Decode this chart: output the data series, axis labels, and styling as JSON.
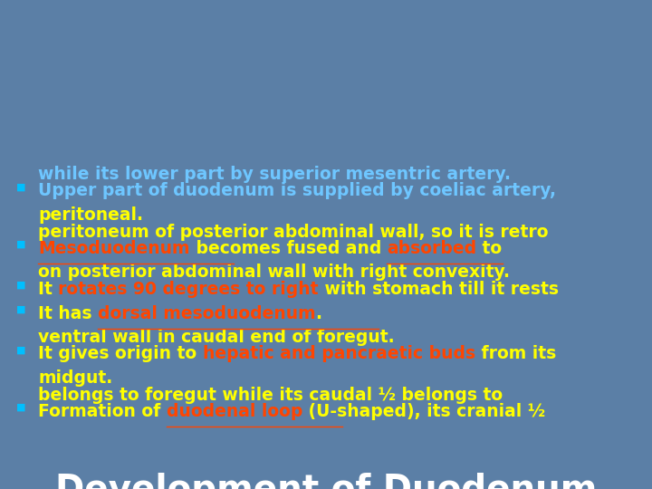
{
  "title": "Development of Duodenum",
  "title_color": "#FFFFFF",
  "title_fontsize": 28,
  "bg_color": "#5b7fa6",
  "bullet_color": "#00BFFF",
  "bullet_char": "■",
  "underline_color": "#3366aa",
  "bullet_points": [
    {
      "segments": [
        {
          "text": "Formation of ",
          "color": "#FFFF00",
          "bold": true
        },
        {
          "text": "duodenal loop",
          "color": "#FF4500",
          "bold": true,
          "underline": true
        },
        {
          "text": " (U-shaped), its cranial ½\nbelongs to foregut while its caudal ½ belongs to\nmidgut.",
          "color": "#FFFF00",
          "bold": true
        }
      ]
    },
    {
      "segments": [
        {
          "text": "It gives origin to ",
          "color": "#FFFF00",
          "bold": true
        },
        {
          "text": "hepatic and pancraetic buds",
          "color": "#FF4500",
          "bold": true
        },
        {
          "text": " from its\nventral wall in caudal end of foregut.",
          "color": "#FFFF00",
          "bold": true
        }
      ]
    },
    {
      "segments": [
        {
          "text": "It has ",
          "color": "#FFFF00",
          "bold": true
        },
        {
          "text": "dorsal mesoduodenum",
          "color": "#FF4500",
          "bold": true,
          "underline": true
        },
        {
          "text": ".",
          "color": "#FFFF00",
          "bold": true
        }
      ]
    },
    {
      "segments": [
        {
          "text": "It ",
          "color": "#FFFF00",
          "bold": true
        },
        {
          "text": "rotates 90 degrees to right",
          "color": "#FF4500",
          "bold": true
        },
        {
          "text": " with stomach till it rests\non posterior abdominal wall with right convexity.",
          "color": "#FFFF00",
          "bold": true
        }
      ]
    },
    {
      "segments": [
        {
          "text": "Mesoduodenum",
          "color": "#FF4500",
          "bold": true,
          "underline": true
        },
        {
          "text": " becomes fused and ",
          "color": "#FFFF00",
          "bold": true
        },
        {
          "text": "absorbed",
          "color": "#FF4500",
          "bold": true,
          "underline": true
        },
        {
          "text": " to\nperitoneum of posterior abdominal wall, so it is retro\nperitoneal.",
          "color": "#FFFF00",
          "bold": true
        }
      ]
    },
    {
      "segments": [
        {
          "text": "Upper part of duodenum is supplied by coeliac artery,\nwhile its lower part by superior mesentric artery.",
          "color": "#6EC6FF",
          "bold": true
        }
      ]
    }
  ],
  "figsize": [
    7.2,
    5.4
  ],
  "dpi": 100
}
